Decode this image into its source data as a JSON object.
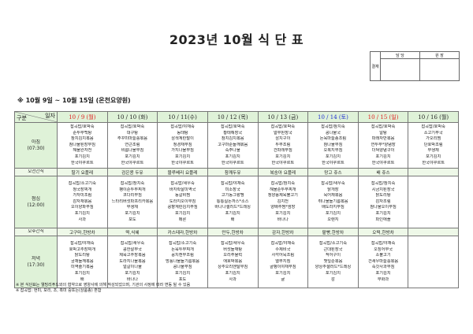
{
  "title": "2023년 10월 식 단 표",
  "approval": {
    "label": "결재",
    "cols": [
      "담 당",
      "원 장"
    ]
  },
  "subtitle": "※ 10월 9일 ~ 10월 15일 (온천요양원)",
  "corner": {
    "top": "일자",
    "bottom": "구분"
  },
  "colors": {
    "header_bg": "#dff2d8",
    "snack_bg": "#eef8e8",
    "sunday_holiday": "#e02020",
    "saturday": "#2030d0"
  },
  "days": [
    {
      "label": "10 / 9 (월)",
      "color": "#e02020"
    },
    {
      "label": "10 / 10 (화)",
      "color": "#222222"
    },
    {
      "label": "10 / 11(수)",
      "color": "#222222"
    },
    {
      "label": "10 / 12 (목)",
      "color": "#222222"
    },
    {
      "label": "10 / 13 (금)",
      "color": "#222222"
    },
    {
      "label": "10 / 14 (토)",
      "color": "#2030d0"
    },
    {
      "label": "10 / 15 (일)",
      "color": "#e02020"
    },
    {
      "label": "10 / 16 (월)",
      "color": "#222222"
    }
  ],
  "rows": [
    {
      "type": "meal",
      "label": "아침",
      "time": "(07:30)",
      "cells": [
        [
          "잡곡밥/호박죽",
          "순두부백탕",
          "참치김치볶음",
          "참나물된장무침",
          "해물완자전",
          "포기김치",
          "한국야쿠르트"
        ],
        [
          "잡곡밥/호박죽",
          "대구탕",
          "주꾸미마늘쫑볶음",
          "연근조림",
          "비름나물무침",
          "포기김치",
          "한국야쿠르트"
        ],
        [
          "잡곡밥/야채죽",
          "동태탕",
          "삼색계란말이",
          "청경채무침",
          "가지나물무침",
          "포기김치",
          "한국야쿠르트"
        ],
        [
          "잡곡밥/호박죽",
          "황태해장국",
          "참치김치볶음",
          "고구마순들깨볶음",
          "숙주나물",
          "포기김치",
          "한국야쿠르트"
        ],
        [
          "잡곡밥/호박죽",
          "얼무된장국",
          "삼치구이",
          "두부조림",
          "건파래무침",
          "포기김치",
          "한국야쿠르트"
        ],
        [
          "잡곡밥/참치죽",
          "콩나물국",
          "돈육마늘종조림",
          "참나물무침",
          "오복지무침",
          "포기김치",
          "한국야쿠르트"
        ],
        [
          "잡곡밥/호박죽",
          "알탕",
          "파래자반볶음",
          "연두부*양념장",
          "더덕양념구이",
          "포기김치",
          "한국야쿠르트"
        ],
        [
          "잡곡밥/호박죽",
          "소고기무국",
          "가오리찜",
          "단호박조림",
          "무생채",
          "포기김치",
          "한국야쿠르트"
        ]
      ]
    },
    {
      "type": "snack",
      "label": "오전간식",
      "cells": [
        "딸기 요플레",
        "검은콩 두유",
        "블루베리 요플레",
        "참깨두유",
        "복숭아 요플레",
        "망고 쥬스",
        "배 쥬스",
        ""
      ]
    },
    {
      "type": "meal",
      "label": "점심",
      "time": "(12:00)",
      "cells": [
        [
          "잡곡밥/소고기죽",
          "청국장찌개",
          "가자미조림",
          "감자채볶음",
          "오이양파무침",
          "포기김치",
          "사과"
        ],
        [
          "잡곡밥/참치죽",
          "팽이순두부찌개",
          "코다리무침",
          "느타리버섯파프리카볶음",
          "무생채",
          "포기김치",
          "포도"
        ],
        [
          "잡곡밥/새우죽",
          "바지락살미역국",
          "동갈비찜",
          "도라지오이무침",
          "콩향계란김치무침",
          "포기김치",
          "메론"
        ],
        [
          "잡곡밥/야채죽",
          "미소장국",
          "고기동그랑땡",
          "통통실돈까스*소스",
          "바나나샐러드*드레싱",
          "포기김치",
          "배"
        ],
        [
          "잡곡밥/참치죽",
          "해물순두부찌개",
          "청양풍제육불고기",
          "김치전",
          "양배추찜*쌈장",
          "포기김치",
          "바나나"
        ],
        [
          "잡곡밥/새우죽",
          "닭개장",
          "묵어채볶음",
          "취나물들기름볶음",
          "배도라지무침",
          "포기김치",
          "오렌지"
        ],
        [
          "잡곡밥/참치죽",
          "시금치된장국",
          "닭도리탕",
          "감자조림",
          "참나물오이무침",
          "포기김치",
          "파인애플"
        ],
        []
      ]
    },
    {
      "type": "snack",
      "label": "오후간식",
      "cells": [
        "고구마,한방차",
        "떡,식혜",
        "카스테라,한방차",
        "만두,한방차",
        "감자,한방차",
        "팥빵,한방차",
        "오떡,한방차",
        ""
      ]
    },
    {
      "type": "meal",
      "label": "저녁",
      "time": "(17:30)",
      "cells": [
        [
          "잡곡밥/야채죽",
          "호박고추장찌개",
          "닭도리탕",
          "궁채들깨볶음",
          "미역줄기볶음",
          "포기김치",
          "배"
        ],
        [
          "잡곡밥/새우죽",
          "콩한살무국",
          "제육고추장볶음",
          "도라지나물볶음",
          "얼갈이나물",
          "포기김치",
          "바나나"
        ],
        [
          "잡곡밥/소고기죽",
          "돈육두부찌개",
          "꽁치캔무조림",
          "방풍나물들기름볶음",
          "콩나물무침",
          "포기김치",
          "포도"
        ],
        [
          "잡곡밥/새우죽",
          "버섯들깨탕",
          "오리주물럭",
          "애호박볶음",
          "상추오리엔탈무침",
          "포기김치",
          "사과"
        ],
        [
          "잡곡밥/야채죽",
          "수제비국",
          "사각어묵조림",
          "열무지짐",
          "골뱅이야채무침",
          "포기김치",
          "귤"
        ],
        [
          "잡곡밥/소고기죽",
          "근대된장국",
          "적어구이",
          "깻잎순볶음",
          "양상추샐러드*드레싱",
          "포기김치",
          "감"
        ],
        [
          "잡곡밥/야채죽",
          "오징어무국",
          "소불고기",
          "건새우마늘쫑볶음",
          "숙갓사과무침",
          "포기김치",
          "무화과"
        ],
        []
      ]
    }
  ],
  "notes": [
    "※ 본 식단표는 웰빙리푸드와의 협약으로 영양사에 의해 작성되었으며, 기관의 사정에 따라 변동 될 수 있음",
    "※ 잡곡밥: 현미, 보리, 조, 흑미 중또는(상품종) 혼합"
  ]
}
